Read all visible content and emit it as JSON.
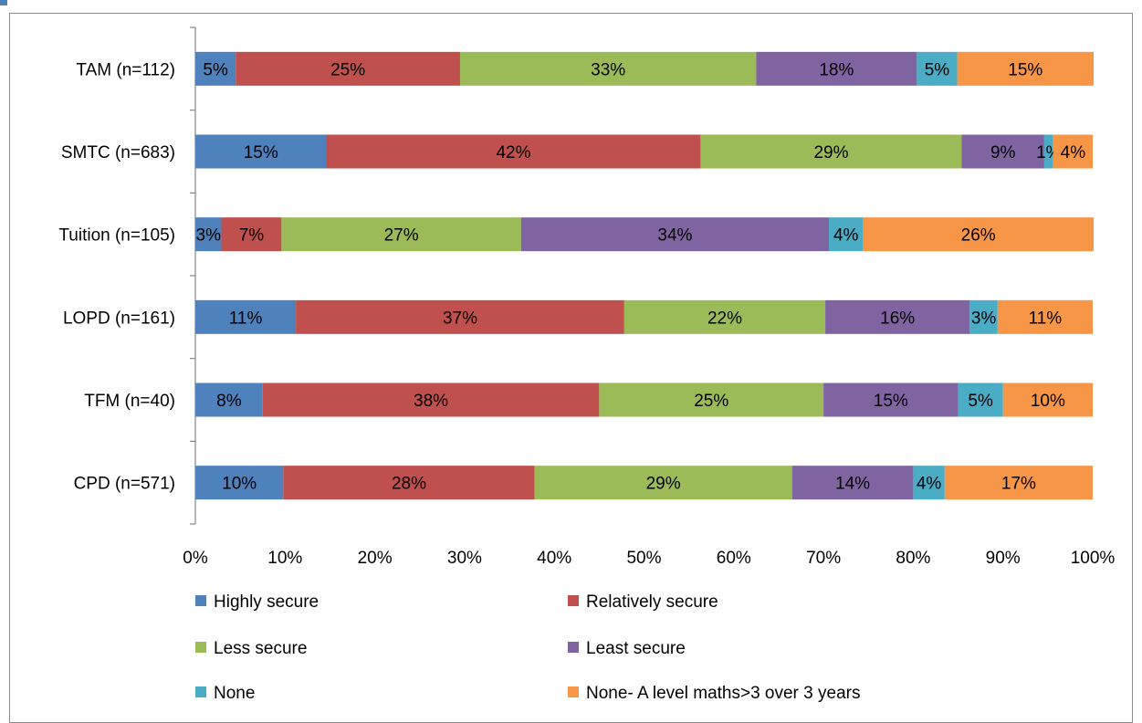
{
  "chart_data": {
    "type": "bar",
    "orientation": "horizontal",
    "stacked": "percent",
    "title": "",
    "xlabel": "",
    "ylabel": "",
    "xlim": [
      0,
      100
    ],
    "x_ticks": [
      "0%",
      "10%",
      "20%",
      "30%",
      "40%",
      "50%",
      "60%",
      "70%",
      "80%",
      "90%",
      "100%"
    ],
    "categories": [
      "TAM (n=112)",
      "SMTC (n=683)",
      "Tuition (n=105)",
      "LOPD (n=161)",
      "TFM (n=40)",
      "CPD (n=571)"
    ],
    "series": [
      {
        "name": "Highly secure",
        "color": "#4F81BD",
        "values": [
          4.5,
          14.6,
          2.9,
          11.2,
          7.5,
          9.8
        ],
        "labels": [
          "5%",
          "15%",
          "3%",
          "11%",
          "8%",
          "10%"
        ]
      },
      {
        "name": "Relatively secure",
        "color": "#C0504D",
        "values": [
          25,
          41.7,
          6.7,
          36.6,
          37.5,
          28.0
        ],
        "labels": [
          "25%",
          "42%",
          "7%",
          "37%",
          "38%",
          "28%"
        ]
      },
      {
        "name": "Less secure",
        "color": "#9BBB59",
        "values": [
          33,
          29.1,
          26.7,
          22.4,
          25,
          28.7
        ],
        "labels": [
          "33%",
          "29%",
          "27%",
          "22%",
          "25%",
          "29%"
        ]
      },
      {
        "name": "Least secure",
        "color": "#8064A2",
        "values": [
          17.9,
          9.2,
          34.3,
          16.1,
          15,
          13.5
        ],
        "labels": [
          "18%",
          "9%",
          "34%",
          "16%",
          "15%",
          "14%"
        ]
      },
      {
        "name": "None",
        "color": "#4BACC6",
        "values": [
          4.5,
          1.0,
          3.8,
          3.1,
          5,
          3.5
        ],
        "labels": [
          "5%",
          "1%",
          "4%",
          "3%",
          "5%",
          "4%"
        ]
      },
      {
        "name": "None- A level maths>3 over 3 years",
        "color": "#F79646",
        "values": [
          15.2,
          4.4,
          25.7,
          10.6,
          10,
          16.5
        ],
        "labels": [
          "15%",
          "4%",
          "26%",
          "11%",
          "10%",
          "17%"
        ]
      }
    ],
    "grid": false,
    "legend_position": "bottom"
  }
}
